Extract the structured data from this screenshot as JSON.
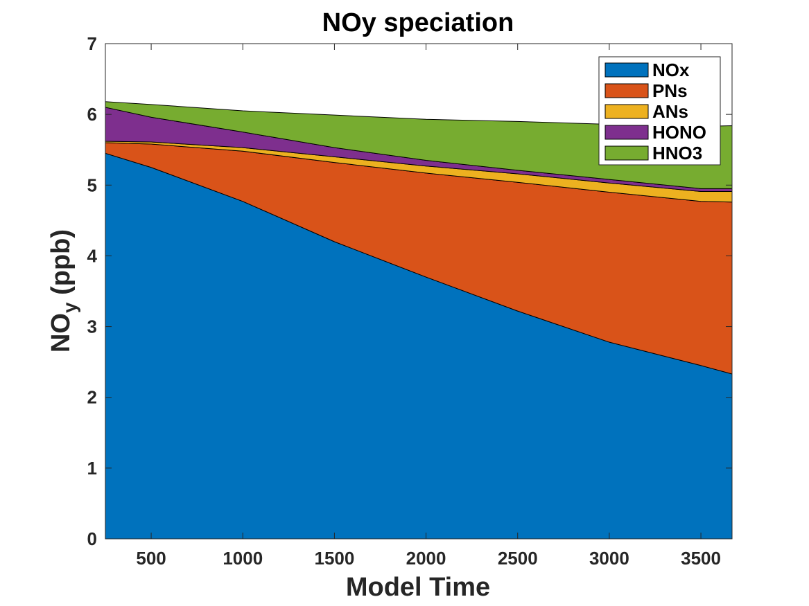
{
  "chart_data": {
    "type": "area",
    "stacked": true,
    "title": "NOy speciation",
    "xlabel": "Model Time",
    "ylabel": "NO",
    "ylabel_subscript": "y",
    "ylabel_suffix": " (ppb)",
    "xlim": [
      250,
      3670
    ],
    "ylim": [
      0,
      7
    ],
    "xticks": [
      500,
      1000,
      1500,
      2000,
      2500,
      3000,
      3500
    ],
    "yticks": [
      0,
      1,
      2,
      3,
      4,
      5,
      6,
      7
    ],
    "grid": false,
    "legend_position": "top-right",
    "x": [
      250,
      500,
      1000,
      1500,
      2000,
      2500,
      3000,
      3500,
      3670
    ],
    "series": [
      {
        "name": "NOx",
        "color": "#0072BD",
        "values": [
          5.45,
          5.25,
          4.77,
          4.2,
          3.7,
          3.22,
          2.78,
          2.45,
          2.33
        ]
      },
      {
        "name": "PNs",
        "color": "#D95319",
        "values": [
          0.15,
          0.33,
          0.71,
          1.12,
          1.47,
          1.82,
          2.12,
          2.32,
          2.43
        ]
      },
      {
        "name": "ANs",
        "color": "#EDB120",
        "values": [
          0.02,
          0.03,
          0.05,
          0.08,
          0.1,
          0.12,
          0.13,
          0.14,
          0.15
        ]
      },
      {
        "name": "HONO",
        "color": "#7E2F8E",
        "values": [
          0.48,
          0.35,
          0.22,
          0.13,
          0.08,
          0.05,
          0.05,
          0.04,
          0.04
        ]
      },
      {
        "name": "HNO3",
        "color": "#77AC30",
        "values": [
          0.08,
          0.18,
          0.3,
          0.46,
          0.58,
          0.69,
          0.78,
          0.88,
          0.89
        ]
      }
    ]
  }
}
